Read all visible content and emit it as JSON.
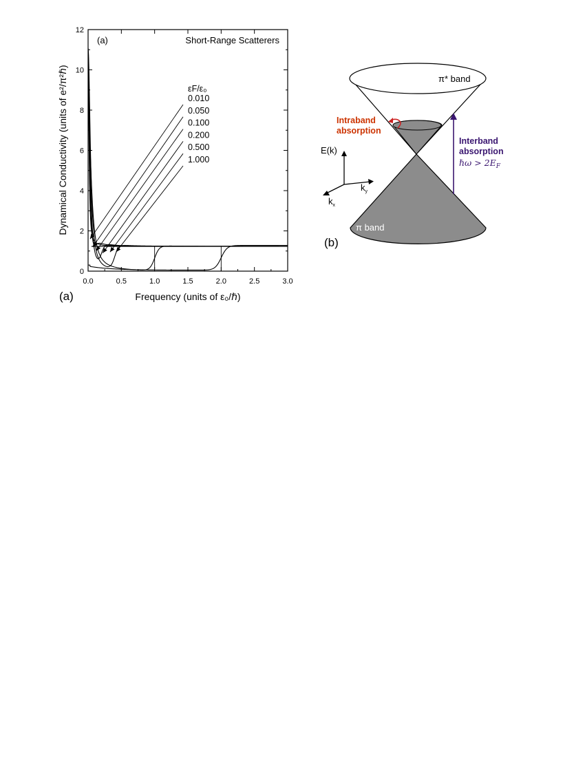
{
  "chart_data": [
    {
      "type": "line",
      "panel_label": "(a)",
      "inner_label": "(a)",
      "title": "Short-Range Scatterers",
      "xlabel": "Frequency (units of ε₀/ℏ)",
      "ylabel": "Dynamical Conductivity (units of e²/π²ℏ)",
      "xlim": [
        0,
        3.0
      ],
      "ylim": [
        0,
        12
      ],
      "xticks": [
        "0.0",
        "0.5",
        "1.0",
        "1.5",
        "2.0",
        "2.5",
        "3.0"
      ],
      "yticks": [
        "0",
        "2",
        "4",
        "6",
        "8",
        "10",
        "12"
      ],
      "legend_header": "εF/ε₀",
      "grid": false,
      "plateau": 1.23,
      "series": [
        {
          "name": "0.010",
          "ef": 0.01,
          "arrow_tip": [
            0.03,
            1.6
          ]
        },
        {
          "name": "0.050",
          "ef": 0.05,
          "arrow_tip": [
            0.07,
            1.2
          ]
        },
        {
          "name": "0.100",
          "ef": 0.1,
          "arrow_tip": [
            0.12,
            1.0
          ]
        },
        {
          "name": "0.200",
          "ef": 0.2,
          "arrow_tip": [
            0.22,
            0.9
          ]
        },
        {
          "name": "0.500",
          "ef": 0.5,
          "arrow_tip": [
            0.33,
            0.95
          ]
        },
        {
          "name": "1.000",
          "ef": 1.0,
          "arrow_tip": [
            0.42,
            0.95
          ]
        }
      ]
    }
  ],
  "diagram": {
    "panel_label": "(b)",
    "upper_band": "π* band",
    "lower_band": "π band",
    "intraband": [
      "Intraband",
      "absorption"
    ],
    "interband": [
      "Interband",
      "absorption"
    ],
    "condition": "ℏω > 2E",
    "condition_sub": "F",
    "axis_e": "E(k)",
    "axis_kx": "k",
    "axis_kx_sub": "x",
    "axis_ky": "k",
    "axis_ky_sub": "y",
    "colors": {
      "intraband": "#cc3300",
      "interband": "#3a1670",
      "fill": "#8c8c8c"
    }
  }
}
